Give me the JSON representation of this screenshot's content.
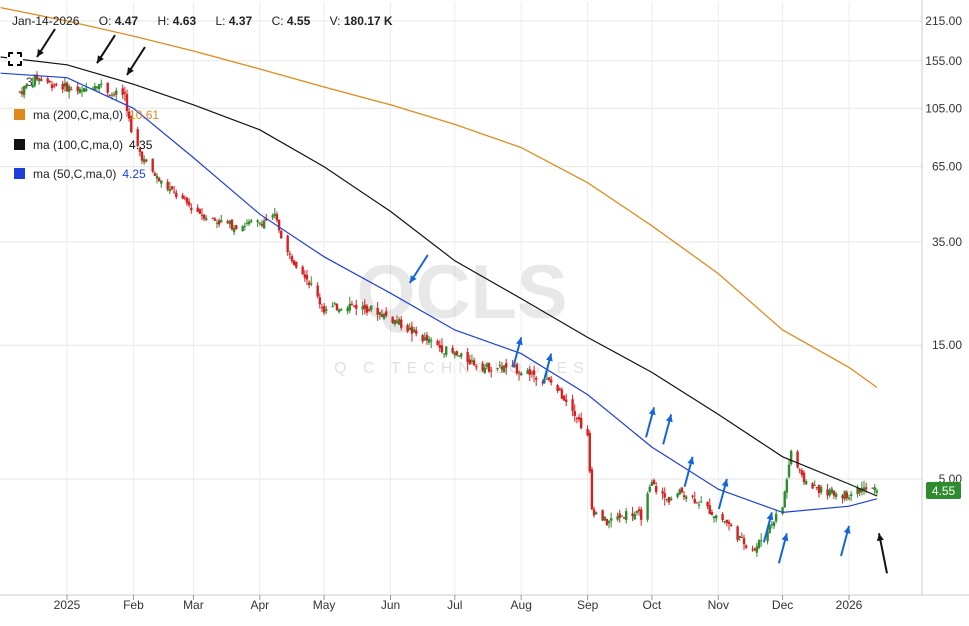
{
  "header": {
    "date": "Jan-14-2026",
    "open_label": "O:",
    "open": "4.47",
    "high_label": "H:",
    "high": "4.63",
    "low_label": "L:",
    "low": "4.37",
    "close_label": "C:",
    "close": "4.55",
    "volume_label": "V:",
    "volume": "180.17 K"
  },
  "toolbar": {
    "layer_count": "3"
  },
  "legend": [
    {
      "label": "ma (200,C,ma,0)",
      "value": "10.61",
      "color": "#e08a1e"
    },
    {
      "label": "ma (100,C,ma,0)",
      "value": "4.35",
      "color": "#111111"
    },
    {
      "label": "ma (50,C,ma,0)",
      "value": "4.25",
      "color": "#1f3fd8"
    }
  ],
  "watermark": {
    "ticker": "QCLS",
    "company": "Q C TECHNOLOGIES"
  },
  "price_badge": "4.55",
  "colors": {
    "up": "#2e8b2e",
    "down": "#d42020",
    "ma200": "#e08a1e",
    "ma100": "#111111",
    "ma50": "#1f3fd8",
    "arrow_blue": "#1565d8",
    "badge": "#2e8b2e"
  },
  "chart_data": {
    "type": "candlestick",
    "y_scale": "log",
    "y_ticks": [
      "215.00",
      "155.00",
      "105.00",
      "65.00",
      "35.00",
      "15.00",
      "5.00"
    ],
    "x_ticks": [
      "2025",
      "Feb",
      "Mar",
      "Apr",
      "May",
      "Jun",
      "Jul",
      "Aug",
      "Sep",
      "Oct",
      "Nov",
      "Dec",
      "2026"
    ],
    "grid": true,
    "last_bar": {
      "date": "Jan-14-2026",
      "open": 4.47,
      "high": 4.63,
      "low": 4.37,
      "close": 4.55,
      "volume": "180.17 K"
    },
    "price_path": [
      [
        "Dec-10-2024",
        120
      ],
      [
        "Dec-18-2024",
        135
      ],
      [
        "Dec-25-2024",
        128
      ],
      [
        "Jan-01-2025",
        125
      ],
      [
        "Jan-08-2025",
        120
      ],
      [
        "Jan-15-2025",
        130
      ],
      [
        "Jan-22-2025",
        118
      ],
      [
        "Jan-28-2025",
        118
      ],
      [
        "Jan-31-2025",
        85
      ],
      [
        "Feb-06-2025",
        68
      ],
      [
        "Feb-13-2025",
        58
      ],
      [
        "Feb-20-2025",
        52
      ],
      [
        "Mar-01-2025",
        46
      ],
      [
        "Mar-10-2025",
        42
      ],
      [
        "Mar-20-2025",
        40
      ],
      [
        "Mar-31-2025",
        41
      ],
      [
        "Apr-08-2025",
        43
      ],
      [
        "Apr-14-2025",
        32
      ],
      [
        "Apr-22-2025",
        27
      ],
      [
        "May-01-2025",
        20
      ],
      [
        "May-12-2025",
        21
      ],
      [
        "May-25-2025",
        20
      ],
      [
        "Jun-05-2025",
        18
      ],
      [
        "Jun-15-2025",
        16
      ],
      [
        "Jun-30-2025",
        14
      ],
      [
        "Jul-15-2025",
        12.5
      ],
      [
        "Jul-25-2025",
        12.5
      ],
      [
        "Aug-05-2025",
        12
      ],
      [
        "Aug-15-2025",
        11
      ],
      [
        "Aug-25-2025",
        9
      ],
      [
        "Sep-01-2025",
        7
      ],
      [
        "Sep-03-2025",
        3.9
      ],
      [
        "Sep-10-2025",
        3.5
      ],
      [
        "Sep-20-2025",
        3.8
      ],
      [
        "Sep-26-2025",
        3.7
      ],
      [
        "Oct-01-2025",
        4.8
      ],
      [
        "Oct-08-2025",
        4.2
      ],
      [
        "Oct-15-2025",
        4.5
      ],
      [
        "Oct-22-2025",
        4.2
      ],
      [
        "Oct-29-2025",
        3.8
      ],
      [
        "Nov-05-2025",
        3.5
      ],
      [
        "Nov-12-2025",
        3.0
      ],
      [
        "Nov-18-2025",
        2.8
      ],
      [
        "Nov-25-2025",
        3.4
      ],
      [
        "Dec-01-2025",
        4.0
      ],
      [
        "Dec-05-2025",
        6.3
      ],
      [
        "Dec-10-2025",
        5.0
      ],
      [
        "Dec-20-2025",
        4.5
      ],
      [
        "Dec-31-2025",
        4.4
      ],
      [
        "Jan-07-2026",
        4.6
      ],
      [
        "Jan-14-2026",
        4.55
      ]
    ],
    "series": [
      {
        "name": "ma (200,C,ma,0)",
        "color": "#e08a1e",
        "points": [
          [
            "Dec-01-2024",
            240
          ],
          [
            "Jan-01-2025",
            215
          ],
          [
            "Feb-01-2025",
            190
          ],
          [
            "Mar-01-2025",
            168
          ],
          [
            "Apr-01-2025",
            145
          ],
          [
            "May-01-2025",
            125
          ],
          [
            "Jun-01-2025",
            108
          ],
          [
            "Jul-01-2025",
            92
          ],
          [
            "Aug-01-2025",
            76
          ],
          [
            "Sep-01-2025",
            57
          ],
          [
            "Oct-01-2025",
            40
          ],
          [
            "Nov-01-2025",
            27
          ],
          [
            "Dec-01-2025",
            17
          ],
          [
            "Jan-01-2026",
            12.5
          ],
          [
            "Jan-14-2026",
            10.61
          ]
        ]
      },
      {
        "name": "ma (100,C,ma,0)",
        "color": "#111111",
        "points": [
          [
            "Dec-01-2024",
            160
          ],
          [
            "Jan-01-2025",
            150
          ],
          [
            "Feb-01-2025",
            128
          ],
          [
            "Mar-01-2025",
            108
          ],
          [
            "Apr-01-2025",
            88
          ],
          [
            "May-01-2025",
            65
          ],
          [
            "Jun-01-2025",
            45
          ],
          [
            "Jul-01-2025",
            30
          ],
          [
            "Aug-01-2025",
            22
          ],
          [
            "Sep-01-2025",
            16
          ],
          [
            "Oct-01-2025",
            12
          ],
          [
            "Nov-01-2025",
            8.5
          ],
          [
            "Dec-01-2025",
            6.0
          ],
          [
            "Jan-01-2026",
            4.8
          ],
          [
            "Jan-14-2026",
            4.35
          ]
        ]
      },
      {
        "name": "ma (50,C,ma,0)",
        "color": "#1f3fd8",
        "points": [
          [
            "Dec-01-2024",
            140
          ],
          [
            "Jan-01-2025",
            135
          ],
          [
            "Feb-01-2025",
            105
          ],
          [
            "Mar-01-2025",
            70
          ],
          [
            "Apr-01-2025",
            44
          ],
          [
            "May-01-2025",
            31
          ],
          [
            "Jun-01-2025",
            23
          ],
          [
            "Jul-01-2025",
            17
          ],
          [
            "Aug-01-2025",
            14
          ],
          [
            "Sep-01-2025",
            10
          ],
          [
            "Oct-01-2025",
            6.5
          ],
          [
            "Nov-01-2025",
            4.6
          ],
          [
            "Dec-01-2025",
            3.8
          ],
          [
            "Jan-01-2026",
            4.0
          ],
          [
            "Jan-14-2026",
            4.25
          ]
        ]
      }
    ],
    "annotations": [
      {
        "kind": "arrow",
        "color": "#111111",
        "date": "Dec-18-2024",
        "price": 160
      },
      {
        "kind": "arrow",
        "color": "#111111",
        "date": "Jan-15-2025",
        "price": 152
      },
      {
        "kind": "arrow",
        "color": "#111111",
        "date": "Jan-29-2025",
        "price": 138
      },
      {
        "kind": "arrow",
        "color": "#1565d8",
        "date": "Jun-10-2025",
        "price": 25
      },
      {
        "kind": "arrow",
        "color": "#1565d8",
        "date": "Aug-01-2025",
        "price": 16
      },
      {
        "kind": "arrow",
        "color": "#1565d8",
        "date": "Aug-15-2025",
        "price": 14
      },
      {
        "kind": "arrow",
        "color": "#1565d8",
        "date": "Oct-02-2025",
        "price": 9
      },
      {
        "kind": "arrow",
        "color": "#1565d8",
        "date": "Oct-10-2025",
        "price": 8.5
      },
      {
        "kind": "arrow",
        "color": "#1565d8",
        "date": "Oct-20-2025",
        "price": 6
      },
      {
        "kind": "arrow",
        "color": "#1565d8",
        "date": "Nov-05-2025",
        "price": 5
      },
      {
        "kind": "arrow",
        "color": "#1565d8",
        "date": "Nov-26-2025",
        "price": 3.8
      },
      {
        "kind": "arrow",
        "color": "#1565d8",
        "date": "Dec-03-2025",
        "price": 3.2
      },
      {
        "kind": "arrow",
        "color": "#1565d8",
        "date": "Jan-01-2026",
        "price": 3.4
      },
      {
        "kind": "arrow",
        "color": "#111111",
        "date": "Jan-15-2026",
        "price": 3.2
      }
    ]
  }
}
